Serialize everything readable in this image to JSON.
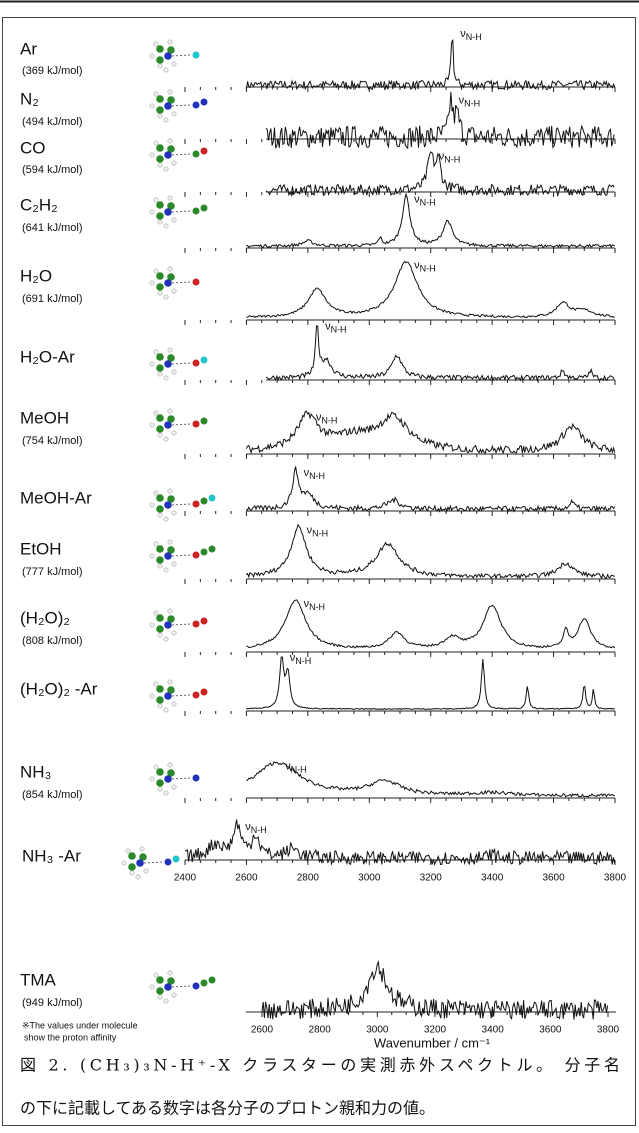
{
  "figure": {
    "peak_label": "ν",
    "peak_label_sub": "N-H",
    "xlim": [
      2400,
      3800
    ],
    "xticks": [
      2400,
      2600,
      2800,
      3000,
      3200,
      3400,
      3600,
      3800
    ],
    "panels": [
      {
        "molecule": "Ar",
        "affinity": "(369 kJ/mol)",
        "xlim": [
          2600,
          3800
        ],
        "peaks": [
          [
            3270,
            1.0,
            4
          ]
        ]
      },
      {
        "molecule": "N₂",
        "affinity": "(494 kJ/mol)",
        "xlim": [
          2664,
          3800
        ],
        "peaks": [
          [
            3265,
            0.8,
            6
          ],
          [
            3285,
            0.5,
            10
          ]
        ]
      },
      {
        "molecule": "CO",
        "affinity": "(594 kJ/mol)",
        "xlim": [
          2664,
          3800
        ],
        "peaks": [
          [
            3200,
            0.75,
            12
          ],
          [
            3225,
            0.6,
            10
          ]
        ]
      },
      {
        "molecule": "C₂H₂",
        "affinity": "(641 kJ/mol)",
        "xlim": [
          2600,
          3800
        ],
        "peaks": [
          [
            2800,
            0.1,
            20
          ],
          [
            3035,
            0.15,
            6
          ],
          [
            3120,
            1.0,
            15
          ],
          [
            3255,
            0.5,
            18
          ]
        ]
      },
      {
        "molecule": "H₂O",
        "affinity": "(691 kJ/mol)",
        "xlim": [
          2600,
          3800
        ],
        "peaks": [
          [
            2830,
            0.5,
            35
          ],
          [
            3120,
            1.0,
            45
          ],
          [
            3630,
            0.25,
            25
          ],
          [
            3700,
            0.12,
            40
          ]
        ]
      },
      {
        "molecule": "H₂O-Ar",
        "xlim": [
          2664,
          3800
        ],
        "peaks": [
          [
            2830,
            1.0,
            6
          ],
          [
            2860,
            0.35,
            20
          ],
          [
            3090,
            0.45,
            20
          ],
          [
            3630,
            0.15,
            8
          ],
          [
            3720,
            0.15,
            6
          ]
        ]
      },
      {
        "molecule": "MeOH",
        "affinity": "(754 kJ/mol)",
        "xlim": [
          2600,
          3800
        ],
        "peaks": [
          [
            2800,
            0.6,
            40
          ],
          [
            2950,
            0.25,
            100
          ],
          [
            3080,
            0.55,
            60
          ],
          [
            3660,
            0.45,
            40
          ]
        ]
      },
      {
        "molecule": "MeOH-Ar",
        "xlim": [
          2600,
          3800
        ],
        "peaks": [
          [
            2760,
            0.8,
            12
          ],
          [
            2800,
            0.3,
            25
          ],
          [
            3080,
            0.2,
            25
          ],
          [
            3660,
            0.15,
            10
          ]
        ]
      },
      {
        "molecule": "EtOH",
        "affinity": "(777 kJ/mol)",
        "xlim": [
          2600,
          3800
        ],
        "peaks": [
          [
            2770,
            0.9,
            30
          ],
          [
            3060,
            0.6,
            45
          ],
          [
            3640,
            0.25,
            30
          ]
        ]
      },
      {
        "molecule": "(H₂O)₂",
        "affinity": "(808 kJ/mol)",
        "xlim": [
          2600,
          3800
        ],
        "peaks": [
          [
            2760,
            0.9,
            40
          ],
          [
            3090,
            0.3,
            30
          ],
          [
            3270,
            0.2,
            30
          ],
          [
            3400,
            0.8,
            35
          ],
          [
            3640,
            0.3,
            10
          ],
          [
            3700,
            0.55,
            25
          ]
        ]
      },
      {
        "molecule": "(H₂O)₂ -Ar",
        "xlim": [
          2600,
          3800
        ],
        "peaks": [
          [
            2715,
            1.0,
            8
          ],
          [
            2735,
            0.7,
            8
          ],
          [
            3370,
            1.0,
            6
          ],
          [
            3515,
            0.45,
            5
          ],
          [
            3700,
            0.5,
            5
          ],
          [
            3730,
            0.4,
            4
          ]
        ]
      },
      {
        "molecule": "NH₃",
        "affinity": "(854 kJ/mol)",
        "xlim": [
          2600,
          3800
        ],
        "peaks": [
          [
            2700,
            0.6,
            90
          ],
          [
            3050,
            0.25,
            60
          ],
          [
            3400,
            0.05,
            80
          ]
        ]
      },
      {
        "molecule": "NH₃ -Ar",
        "xlim": [
          2400,
          3800
        ],
        "peaks": [
          [
            2500,
            0.3,
            30
          ],
          [
            2570,
            0.7,
            15
          ],
          [
            2630,
            0.5,
            15
          ],
          [
            2750,
            0.2,
            25
          ],
          [
            3400,
            0.1,
            10
          ]
        ]
      },
      {
        "molecule": "TMA",
        "affinity": "(949 kJ/mol)",
        "xlim": [
          2600,
          3800
        ],
        "peaks": [
          [
            3000,
            0.8,
            40
          ]
        ],
        "axis_xlim": [
          2600,
          3800
        ],
        "xticks": [
          2600,
          2800,
          3000,
          3200,
          3400,
          3600,
          3800
        ]
      }
    ],
    "axis_title": "Wavenumber / cm⁻¹",
    "footnote": [
      "※The values under molecule",
      "show the proton affinity"
    ],
    "caption": [
      "図 2. (CH₃)₃N-H⁺-X クラスターの実測赤外スペクトル。 分子名",
      "の下に記載してある数字は各分子のプロトン親和力の値。"
    ]
  }
}
